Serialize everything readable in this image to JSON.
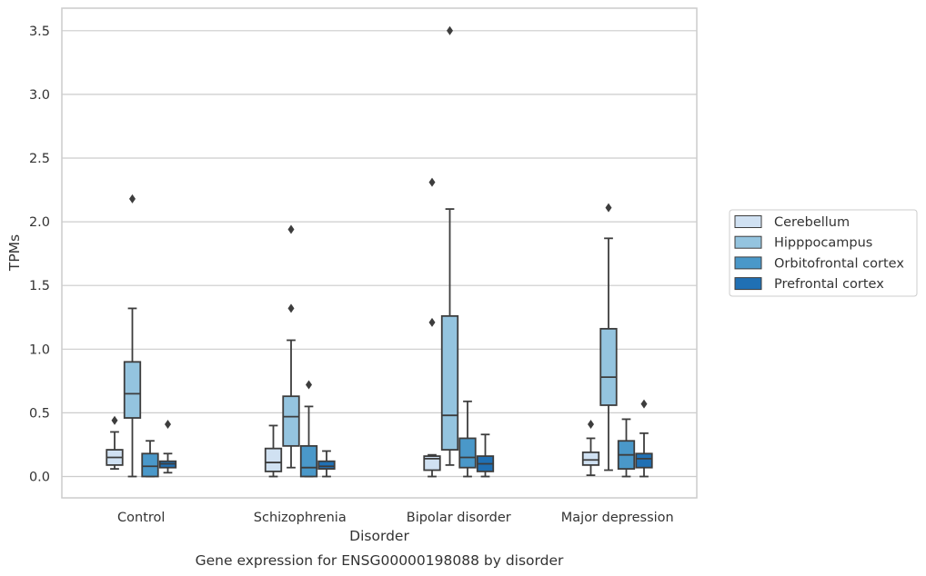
{
  "caption": "Gene expression for ENSG00000198088 by disorder",
  "chart_data": {
    "type": "box",
    "xlabel": "Disorder",
    "ylabel": "TPMs",
    "ylim": [
      -0.17,
      3.68
    ],
    "y_ticks": [
      "0.0",
      "0.5",
      "1.0",
      "1.5",
      "2.0",
      "2.5",
      "3.0",
      "3.5"
    ],
    "grid": "horizontal",
    "legend_position": "right",
    "categories": [
      "Control",
      "Schizophrenia",
      "Bipolar disorder",
      "Major depression"
    ],
    "series": [
      {
        "name": "Cerebellum",
        "color": "#d0e1f2",
        "boxes": [
          {
            "whislo": 0.06,
            "q1": 0.09,
            "med": 0.15,
            "q3": 0.21,
            "whishi": 0.35,
            "fliers": [
              0.44
            ]
          },
          {
            "whislo": 0.0,
            "q1": 0.04,
            "med": 0.11,
            "q3": 0.22,
            "whishi": 0.4,
            "fliers": []
          },
          {
            "whislo": 0.0,
            "q1": 0.05,
            "med": 0.14,
            "q3": 0.16,
            "whishi": 0.17,
            "fliers": [
              1.21,
              2.31
            ]
          },
          {
            "whislo": 0.01,
            "q1": 0.09,
            "med": 0.13,
            "q3": 0.19,
            "whishi": 0.3,
            "fliers": [
              0.41
            ]
          }
        ]
      },
      {
        "name": "Hipppocampus",
        "color": "#94c4df",
        "boxes": [
          {
            "whislo": 0.0,
            "q1": 0.46,
            "med": 0.65,
            "q3": 0.9,
            "whishi": 1.32,
            "fliers": [
              2.18
            ]
          },
          {
            "whislo": 0.07,
            "q1": 0.24,
            "med": 0.47,
            "q3": 0.63,
            "whishi": 1.07,
            "fliers": [
              1.32,
              1.94
            ]
          },
          {
            "whislo": 0.09,
            "q1": 0.21,
            "med": 0.48,
            "q3": 1.26,
            "whishi": 2.1,
            "fliers": [
              3.5
            ]
          },
          {
            "whislo": 0.05,
            "q1": 0.56,
            "med": 0.78,
            "q3": 1.16,
            "whishi": 1.87,
            "fliers": [
              2.11
            ]
          }
        ]
      },
      {
        "name": "Orbitofrontal cortex",
        "color": "#4a98c9",
        "boxes": [
          {
            "whislo": 0.0,
            "q1": 0.0,
            "med": 0.08,
            "q3": 0.18,
            "whishi": 0.28,
            "fliers": []
          },
          {
            "whislo": 0.0,
            "q1": 0.0,
            "med": 0.07,
            "q3": 0.24,
            "whishi": 0.55,
            "fliers": [
              0.72
            ]
          },
          {
            "whislo": 0.0,
            "q1": 0.07,
            "med": 0.15,
            "q3": 0.3,
            "whishi": 0.59,
            "fliers": []
          },
          {
            "whislo": 0.0,
            "q1": 0.06,
            "med": 0.17,
            "q3": 0.28,
            "whishi": 0.45,
            "fliers": []
          }
        ]
      },
      {
        "name": "Prefrontal cortex",
        "color": "#2070b4",
        "boxes": [
          {
            "whislo": 0.03,
            "q1": 0.07,
            "med": 0.1,
            "q3": 0.12,
            "whishi": 0.18,
            "fliers": [
              0.41
            ]
          },
          {
            "whislo": 0.0,
            "q1": 0.06,
            "med": 0.08,
            "q3": 0.12,
            "whishi": 0.2,
            "fliers": []
          },
          {
            "whislo": 0.0,
            "q1": 0.04,
            "med": 0.1,
            "q3": 0.16,
            "whishi": 0.33,
            "fliers": []
          },
          {
            "whislo": 0.0,
            "q1": 0.07,
            "med": 0.14,
            "q3": 0.18,
            "whishi": 0.34,
            "fliers": [
              0.57
            ]
          }
        ]
      }
    ]
  }
}
